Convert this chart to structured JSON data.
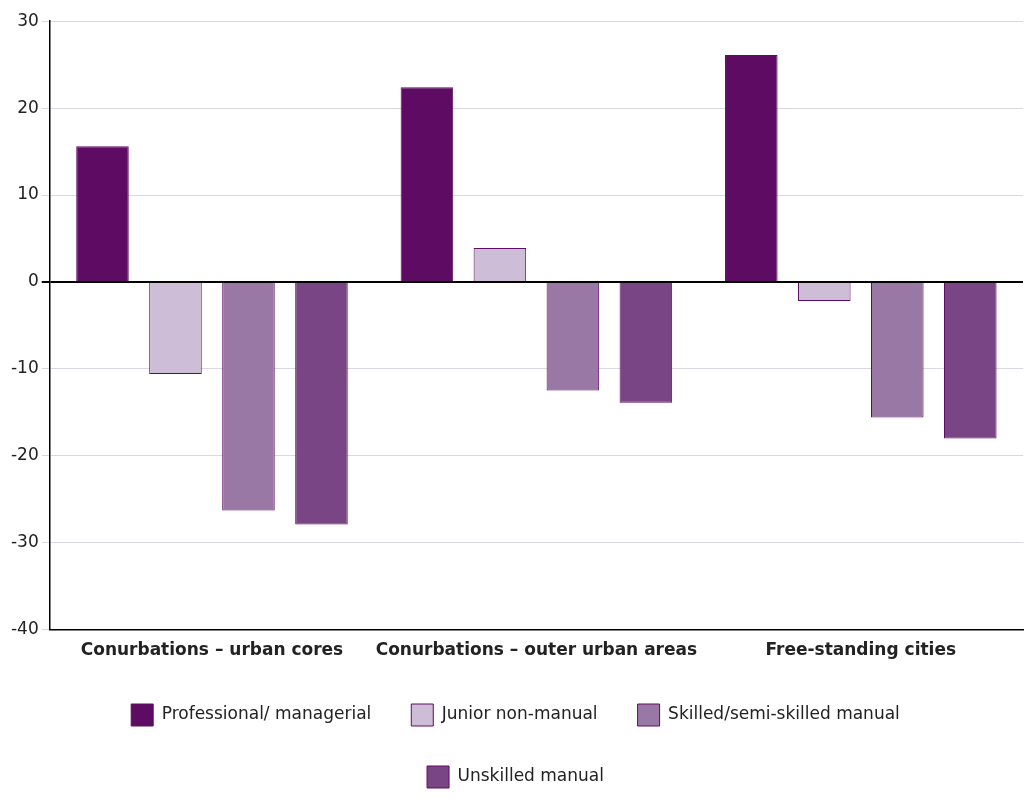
{
  "chart_data": {
    "type": "bar",
    "categories": [
      "Conurbations – urban cores",
      "Conurbations – outer urban areas",
      "Free-standing cities"
    ],
    "series": [
      {
        "name": "Professional/ managerial",
        "color": "#5e0c63",
        "values": [
          15.6,
          22.4,
          26.1
        ]
      },
      {
        "name": "Junior non-manual",
        "color": "#cdbdd6",
        "values": [
          -10.6,
          3.9,
          -2.2
        ]
      },
      {
        "name": "Skilled/semi-skilled manual",
        "color": "#9a78a5",
        "values": [
          -26.3,
          -12.5,
          -15.6
        ]
      },
      {
        "name": "Unskilled manual",
        "color": "#7a4584",
        "values": [
          -27.9,
          -13.9,
          -18.0
        ]
      }
    ],
    "ylim": [
      -40,
      30
    ],
    "yticks": [
      -40,
      -30,
      -20,
      -10,
      0,
      10,
      20,
      30
    ],
    "grid": "y",
    "legend": "bottom"
  }
}
